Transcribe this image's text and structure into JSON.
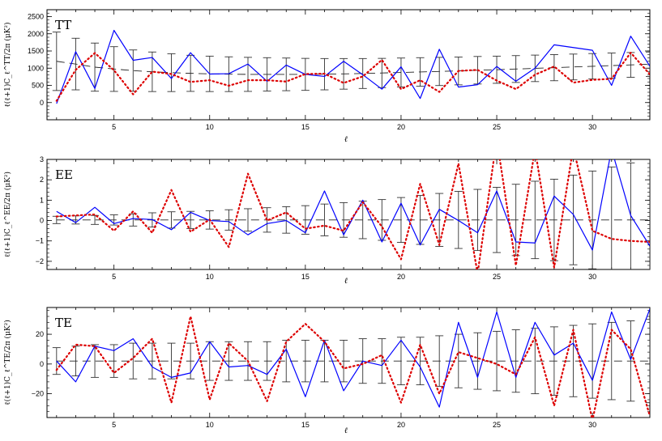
{
  "chart_data": [
    {
      "type": "line",
      "panel_label": "TT",
      "ylabel": "ℓ(ℓ+1)C_ℓ^TT/2π   (μK²)",
      "xlabel": "ℓ",
      "xlim": [
        1.5,
        33
      ],
      "ylim": [
        -500,
        2700
      ],
      "xticks": [
        5,
        10,
        15,
        20,
        25,
        30
      ],
      "yticks": [
        0,
        500,
        1000,
        1500,
        2000,
        2500
      ],
      "ytick_labels": [
        "0",
        "500",
        "1000",
        "1500",
        "2000",
        "2500"
      ],
      "x": [
        2,
        3,
        4,
        5,
        6,
        7,
        8,
        9,
        10,
        11,
        12,
        13,
        14,
        15,
        16,
        17,
        18,
        19,
        20,
        21,
        22,
        23,
        24,
        25,
        26,
        27,
        28,
        29,
        30,
        31,
        32,
        33
      ],
      "fiducial": [
        1200,
        1120,
        1030,
        975,
        930,
        895,
        870,
        850,
        835,
        825,
        820,
        820,
        820,
        820,
        825,
        835,
        845,
        860,
        875,
        890,
        905,
        920,
        940,
        955,
        975,
        995,
        1015,
        1035,
        1055,
        1075,
        1095,
        1115
      ],
      "error": [
        850,
        750,
        700,
        650,
        600,
        575,
        550,
        525,
        515,
        505,
        495,
        485,
        475,
        465,
        455,
        445,
        435,
        425,
        420,
        415,
        410,
        405,
        400,
        395,
        390,
        385,
        380,
        375,
        370,
        365,
        360,
        355
      ],
      "series": [
        {
          "color": "#0000ff",
          "style": "solid",
          "values": [
            -30,
            1480,
            410,
            2100,
            1230,
            1310,
            700,
            1450,
            830,
            840,
            1120,
            620,
            1090,
            820,
            760,
            1200,
            810,
            390,
            1040,
            120,
            1550,
            450,
            520,
            1050,
            620,
            1000,
            1680,
            1600,
            1520,
            500,
            1930,
            1060
          ]
        },
        {
          "color": "#dd0000",
          "style": "dotted",
          "values": [
            50,
            950,
            1440,
            940,
            240,
            900,
            830,
            600,
            650,
            490,
            650,
            650,
            610,
            830,
            840,
            570,
            760,
            1240,
            390,
            650,
            310,
            920,
            950,
            640,
            390,
            810,
            1050,
            580,
            660,
            690,
            1450,
            820
          ]
        }
      ]
    },
    {
      "type": "line",
      "panel_label": "EE",
      "ylabel": "ℓ(ℓ+1)C_ℓ^EE/2π   (μK²)",
      "xlabel": "ℓ",
      "xlim": [
        1.5,
        33
      ],
      "ylim": [
        -2.4,
        3.0
      ],
      "xticks": [
        5,
        10,
        15,
        20,
        25,
        30
      ],
      "yticks": [
        -2,
        -1,
        0,
        1,
        2,
        3
      ],
      "ytick_labels": [
        "−2",
        "−1",
        "0",
        "1",
        "2",
        "3"
      ],
      "x": [
        2,
        3,
        4,
        5,
        6,
        7,
        8,
        9,
        10,
        11,
        12,
        13,
        14,
        15,
        16,
        17,
        18,
        19,
        20,
        21,
        22,
        23,
        24,
        25,
        26,
        27,
        28,
        29,
        30,
        31,
        32,
        33
      ],
      "fiducial": [
        0.03,
        0.03,
        0.03,
        0.03,
        0.03,
        0.03,
        0.03,
        0.03,
        0.03,
        0.03,
        0.03,
        0.03,
        0.03,
        0.03,
        0.03,
        0.03,
        0.03,
        0.03,
        0.03,
        0.03,
        0.03,
        0.03,
        0.03,
        0.03,
        0.03,
        0.03,
        0.03,
        0.03,
        0.03,
        0.03,
        0.03,
        0.03
      ],
      "error": [
        0.18,
        0.2,
        0.22,
        0.25,
        0.3,
        0.35,
        0.4,
        0.42,
        0.45,
        0.5,
        0.55,
        0.6,
        0.65,
        0.7,
        0.78,
        0.85,
        0.92,
        1.0,
        1.1,
        1.2,
        1.3,
        1.4,
        1.5,
        1.6,
        1.75,
        1.9,
        2.0,
        2.2,
        2.4,
        2.6,
        2.8,
        3.0
      ],
      "series": [
        {
          "color": "#0000ff",
          "style": "solid",
          "values": [
            0.45,
            -0.1,
            0.65,
            -0.15,
            0.1,
            0.05,
            -0.45,
            0.4,
            0.0,
            -0.05,
            -0.7,
            -0.15,
            0.0,
            -0.6,
            1.45,
            -0.7,
            1.0,
            -1.05,
            0.85,
            -1.2,
            0.55,
            0.0,
            -0.6,
            1.45,
            -1.05,
            -1.1,
            1.2,
            0.3,
            -1.45,
            3.5,
            0.25,
            -1.25
          ]
        },
        {
          "color": "#dd0000",
          "style": "dotted",
          "values": [
            0.2,
            0.25,
            0.3,
            -0.5,
            0.45,
            -0.6,
            1.5,
            -0.55,
            0.05,
            -1.3,
            2.3,
            0.0,
            0.4,
            -0.4,
            -0.25,
            -0.5,
            0.9,
            -0.3,
            -1.9,
            1.8,
            -1.2,
            2.8,
            -2.6,
            4.0,
            -2.2,
            3.5,
            -2.3,
            3.6,
            -0.5,
            -0.9,
            -1.0,
            -1.05
          ]
        }
      ]
    },
    {
      "type": "line",
      "panel_label": "TE",
      "ylabel": "ℓ(ℓ+1)C_ℓ^TE/2π   (μK²)",
      "xlabel": "ℓ",
      "xlim": [
        1.5,
        33
      ],
      "ylim": [
        -36,
        38
      ],
      "xticks": [
        5,
        10,
        15,
        20,
        25,
        30
      ],
      "yticks": [
        -20,
        0,
        20
      ],
      "ytick_labels": [
        "−20",
        "0",
        "20"
      ],
      "x": [
        2,
        3,
        4,
        5,
        6,
        7,
        8,
        9,
        10,
        11,
        12,
        13,
        14,
        15,
        16,
        17,
        18,
        19,
        20,
        21,
        22,
        23,
        24,
        25,
        26,
        27,
        28,
        29,
        30,
        31,
        32,
        33
      ],
      "fiducial": [
        2,
        2,
        2,
        2,
        2,
        2,
        2,
        2,
        2,
        2,
        2,
        2,
        2,
        2,
        2,
        2,
        2,
        2,
        2,
        2,
        2,
        2,
        2,
        2,
        2,
        2,
        2,
        2,
        2,
        2,
        2,
        2
      ],
      "error": [
        9,
        10,
        11,
        11,
        12,
        12,
        12,
        12,
        13,
        13,
        13,
        13,
        14,
        14,
        14,
        14,
        15,
        15,
        16,
        16,
        17,
        18,
        19,
        20,
        21,
        22,
        23,
        24,
        25,
        26,
        27,
        28
      ],
      "series": [
        {
          "color": "#0000ff",
          "style": "solid",
          "values": [
            2,
            -12,
            12,
            9,
            17,
            -2,
            -9,
            -6,
            15,
            -2,
            -1,
            -7,
            10,
            -22,
            16,
            -18,
            2,
            -1,
            16,
            -2,
            -29,
            28,
            -9,
            35,
            -9,
            28,
            6,
            14,
            -11,
            35,
            3,
            37
          ]
        },
        {
          "color": "#dd0000",
          "style": "dotted",
          "values": [
            -4,
            13,
            12,
            -6,
            4,
            17,
            -26,
            32,
            -24,
            14,
            2,
            -25,
            15,
            27,
            15,
            -3,
            0,
            6,
            -26,
            13,
            -20,
            8,
            4,
            0,
            -7,
            18,
            -28,
            23,
            -38,
            23,
            10,
            -35
          ]
        }
      ]
    }
  ]
}
